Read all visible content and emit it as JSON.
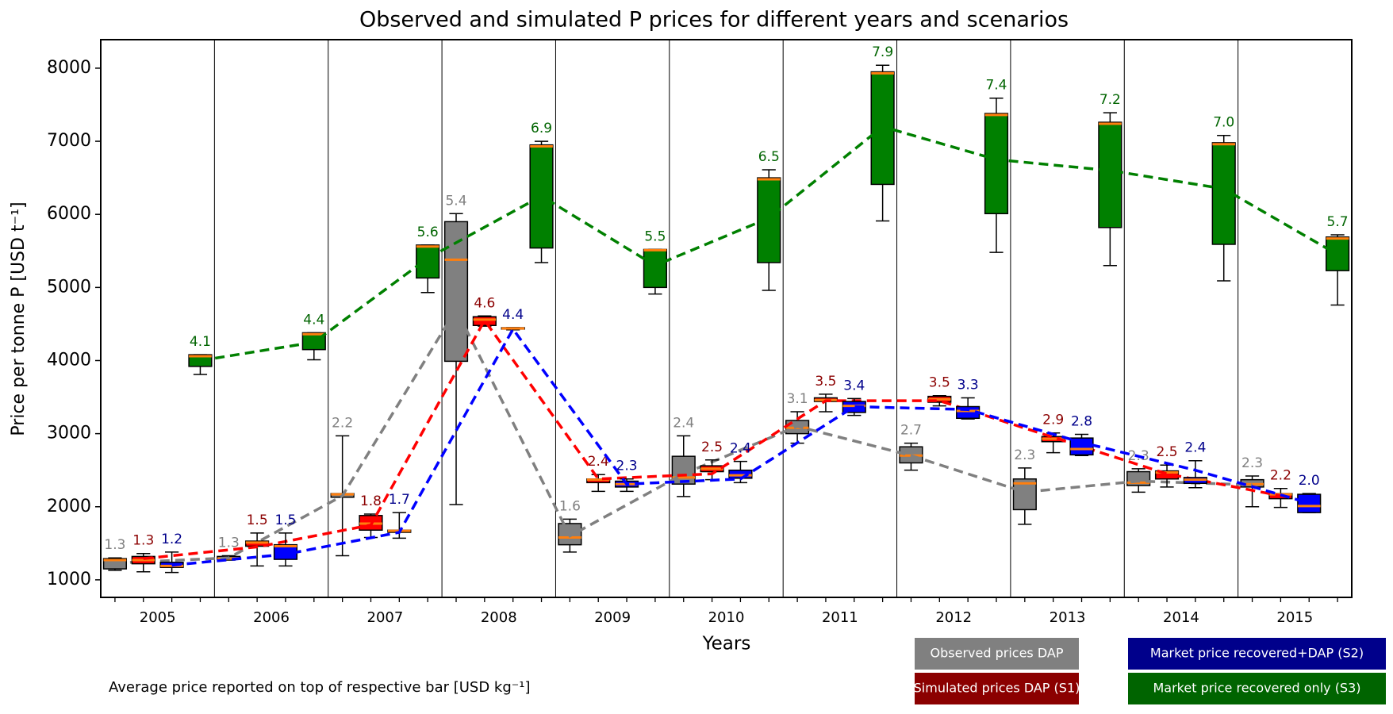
{
  "chart_data": {
    "type": "box",
    "title": "Observed and simulated P prices for different years and scenarios",
    "x_label": "Years",
    "y_label": "Price per tonne P [USD t⁻¹]",
    "footnote": "Average price reported on top of respective bar [USD kg⁻¹]",
    "categories": [
      "2005",
      "2006",
      "2007",
      "2008",
      "2009",
      "2010",
      "2011",
      "2012",
      "2013",
      "2014",
      "2015"
    ],
    "ylim": [
      760,
      8390
    ],
    "yticks": [
      1000,
      2000,
      3000,
      4000,
      5000,
      6000,
      7000,
      8000
    ],
    "legend": "below-right",
    "median_color": "#ff7f0e",
    "series": [
      {
        "name": "Observed prices DAP",
        "color": "#808080",
        "label_color": "#808080",
        "whislo": [
          1130,
          1270,
          1330,
          2030,
          1380,
          2140,
          2870,
          2500,
          1760,
          2200,
          2000
        ],
        "q1": [
          1150,
          1280,
          2130,
          3990,
          1480,
          2310,
          3000,
          2600,
          1960,
          2290,
          2270
        ],
        "values": [
          1270,
          1290,
          2170,
          5380,
          1580,
          2400,
          3080,
          2700,
          2320,
          2330,
          2310
        ],
        "q3": [
          1290,
          1320,
          2180,
          5900,
          1770,
          2690,
          3180,
          2820,
          2380,
          2480,
          2370
        ],
        "whishi": [
          1300,
          1330,
          2970,
          6010,
          1830,
          2970,
          3300,
          2870,
          2530,
          2520,
          2420
        ],
        "value_labels": [
          "1.3",
          "1.3",
          "2.2",
          "5.4",
          "1.6",
          "2.4",
          "3.1",
          "2.7",
          "2.3",
          "2.3",
          "2.3"
        ],
        "mean": [
          1230,
          1300,
          2150,
          4700,
          1600,
          2450,
          3100,
          2700,
          2200,
          2350,
          2300
        ]
      },
      {
        "name": "Simulated prices DAP (S1)",
        "color": "#ff0000",
        "label_color": "#8b0000",
        "whislo": [
          1110,
          1190,
          1580,
          4470,
          2210,
          2370,
          3300,
          3380,
          2740,
          2270,
          1990
        ],
        "q1": [
          1220,
          1460,
          1680,
          4480,
          2330,
          2480,
          3440,
          3430,
          2890,
          2380,
          2110
        ],
        "values": [
          1270,
          1510,
          1770,
          4560,
          2370,
          2520,
          3460,
          3470,
          2930,
          2470,
          2170
        ],
        "q3": [
          1320,
          1530,
          1880,
          4600,
          2380,
          2560,
          3490,
          3510,
          2960,
          2490,
          2180
        ],
        "whishi": [
          1360,
          1640,
          1900,
          4610,
          2440,
          2640,
          3540,
          3520,
          3010,
          2570,
          2250
        ],
        "value_labels": [
          "1.3",
          "1.5",
          "1.8",
          "4.6",
          "2.4",
          "2.5",
          "3.5",
          "3.5",
          "2.9",
          "2.5",
          "2.2"
        ],
        "mean": [
          1290,
          1450,
          1750,
          4550,
          2380,
          2450,
          3450,
          3450,
          2950,
          2450,
          2150
        ]
      },
      {
        "name": "Market price recovered+DAP (S2)",
        "color": "#0000ff",
        "label_color": "#00008b",
        "whislo": [
          1100,
          1190,
          1570,
          4420,
          2210,
          2330,
          3250,
          3200,
          2700,
          2260,
          1920
        ],
        "q1": [
          1170,
          1280,
          1650,
          4430,
          2270,
          2390,
          3290,
          3210,
          2710,
          2320,
          1920
        ],
        "values": [
          1190,
          1460,
          1670,
          4440,
          2310,
          2430,
          3380,
          3310,
          2790,
          2370,
          2010
        ],
        "q3": [
          1240,
          1480,
          1680,
          4450,
          2350,
          2500,
          3440,
          3370,
          2940,
          2400,
          2170
        ],
        "whishi": [
          1380,
          1640,
          1920,
          4450,
          2380,
          2620,
          3480,
          3490,
          2990,
          2630,
          2180
        ],
        "value_labels": [
          "1.2",
          "1.5",
          "1.7",
          "4.4",
          "2.3",
          "2.4",
          "3.4",
          "3.3",
          "2.8",
          "2.4",
          "2.0"
        ],
        "mean": [
          1200,
          1350,
          1650,
          4430,
          2310,
          2380,
          3370,
          3330,
          2880,
          2500,
          2050
        ]
      },
      {
        "name": "Market price recovered only (S3)",
        "color": "#008000",
        "label_color": "#006400",
        "whislo": [
          3810,
          4010,
          4930,
          5340,
          4910,
          4960,
          5910,
          5480,
          5300,
          5090,
          4760
        ],
        "q1": [
          3920,
          4150,
          5130,
          5540,
          5000,
          5340,
          6410,
          6010,
          5820,
          5590,
          5230
        ],
        "values": [
          4060,
          4360,
          5560,
          6930,
          5510,
          6480,
          7930,
          7360,
          7240,
          6960,
          5670
        ],
        "q3": [
          4080,
          4380,
          5580,
          6950,
          5520,
          6500,
          7950,
          7380,
          7260,
          6980,
          5690
        ],
        "whishi": [
          4080,
          4380,
          5580,
          7000,
          5520,
          6610,
          8040,
          7590,
          7390,
          7080,
          5720
        ],
        "value_labels": [
          "4.1",
          "4.4",
          "5.6",
          "6.9",
          "5.5",
          "6.5",
          "7.9",
          "7.4",
          "7.2",
          "7.0",
          "5.7"
        ],
        "mean": [
          4000,
          4250,
          5400,
          6250,
          5300,
          5950,
          7200,
          6750,
          6600,
          6350,
          5450
        ]
      }
    ]
  }
}
